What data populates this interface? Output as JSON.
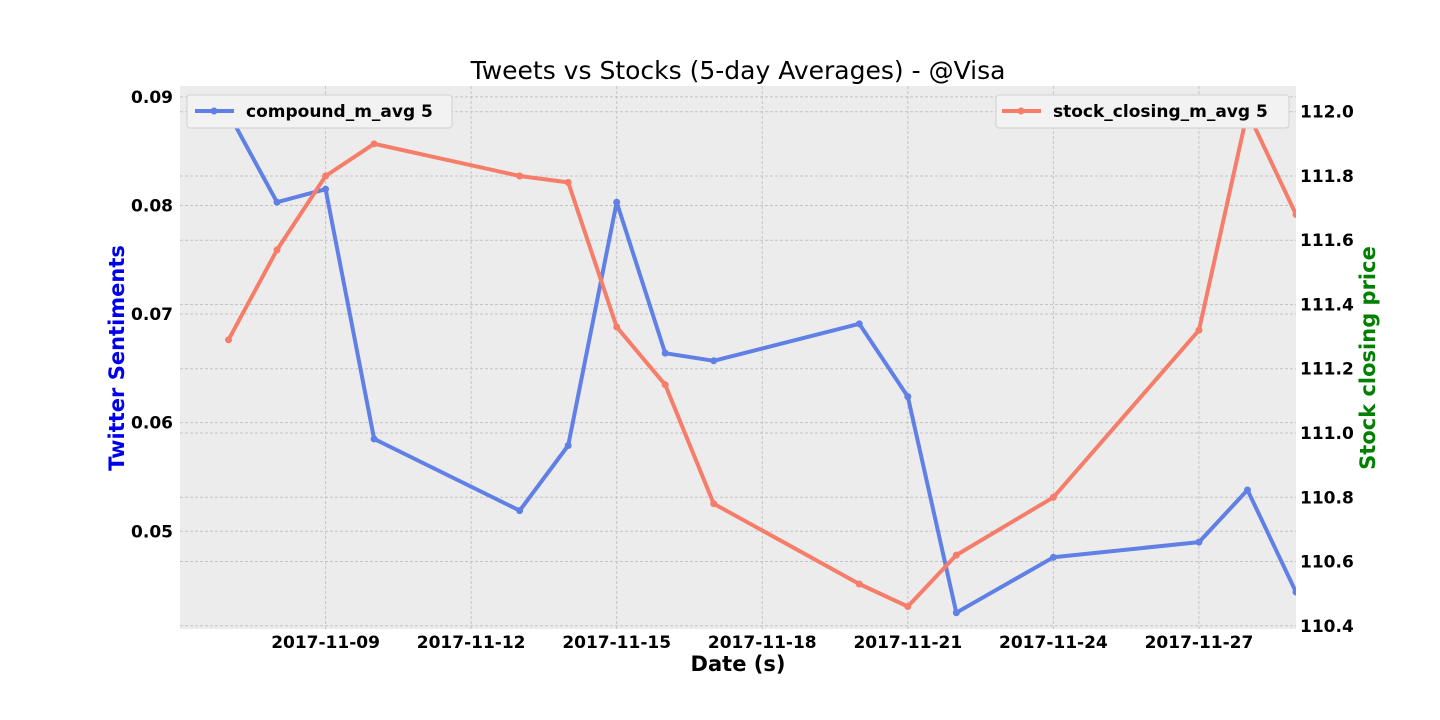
{
  "chart_data": {
    "type": "line",
    "title": "Tweets vs Stocks (5-day Averages) - @Visa",
    "xlabel": "Date (s)",
    "ylabel_left": "Twitter Sentiments",
    "ylabel_right": "Stock closing price",
    "ylabel_left_color": "#0000ee",
    "ylabel_right_color": "#008000",
    "grid": true,
    "xlim": [
      "2017-11-06",
      "2017-11-29"
    ],
    "x_ticks": [
      "2017-11-09",
      "2017-11-12",
      "2017-11-15",
      "2017-11-18",
      "2017-11-21",
      "2017-11-24",
      "2017-11-27"
    ],
    "ylim_left": [
      0.041,
      0.091
    ],
    "yticks_left": [
      "0.05",
      "0.06",
      "0.07",
      "0.08",
      "0.09"
    ],
    "ylim_right": [
      110.39,
      112.08
    ],
    "yticks_right": [
      "110.4",
      "110.6",
      "110.8",
      "111.0",
      "111.2",
      "111.4",
      "111.6",
      "111.8",
      "112.0"
    ],
    "series": [
      {
        "name": "compound_m_avg 5",
        "axis": "left",
        "color": "#6180e6",
        "legend_position": "top-left",
        "x": [
          "2017-11-07",
          "2017-11-08",
          "2017-11-09",
          "2017-11-10",
          "2017-11-13",
          "2017-11-14",
          "2017-11-15",
          "2017-11-16",
          "2017-11-17",
          "2017-11-20",
          "2017-11-21",
          "2017-11-22",
          "2017-11-24",
          "2017-11-27",
          "2017-11-28",
          "2017-11-29"
        ],
        "values": [
          0.0885,
          0.0803,
          0.0815,
          0.0585,
          0.0519,
          0.0579,
          0.0803,
          0.0664,
          0.0657,
          0.0691,
          0.0624,
          0.0425,
          0.0476,
          0.049,
          0.0538,
          0.0444
        ]
      },
      {
        "name": "stock_closing_m_avg 5",
        "axis": "right",
        "color": "#f57d69",
        "legend_position": "top-right",
        "x": [
          "2017-11-07",
          "2017-11-08",
          "2017-11-09",
          "2017-11-10",
          "2017-11-13",
          "2017-11-14",
          "2017-11-15",
          "2017-11-16",
          "2017-11-17",
          "2017-11-20",
          "2017-11-21",
          "2017-11-22",
          "2017-11-24",
          "2017-11-27",
          "2017-11-28",
          "2017-11-29"
        ],
        "values": [
          111.29,
          111.57,
          111.8,
          111.9,
          111.8,
          111.78,
          111.33,
          111.15,
          110.78,
          110.53,
          110.46,
          110.62,
          110.8,
          111.32,
          112.0,
          111.68
        ]
      }
    ]
  }
}
